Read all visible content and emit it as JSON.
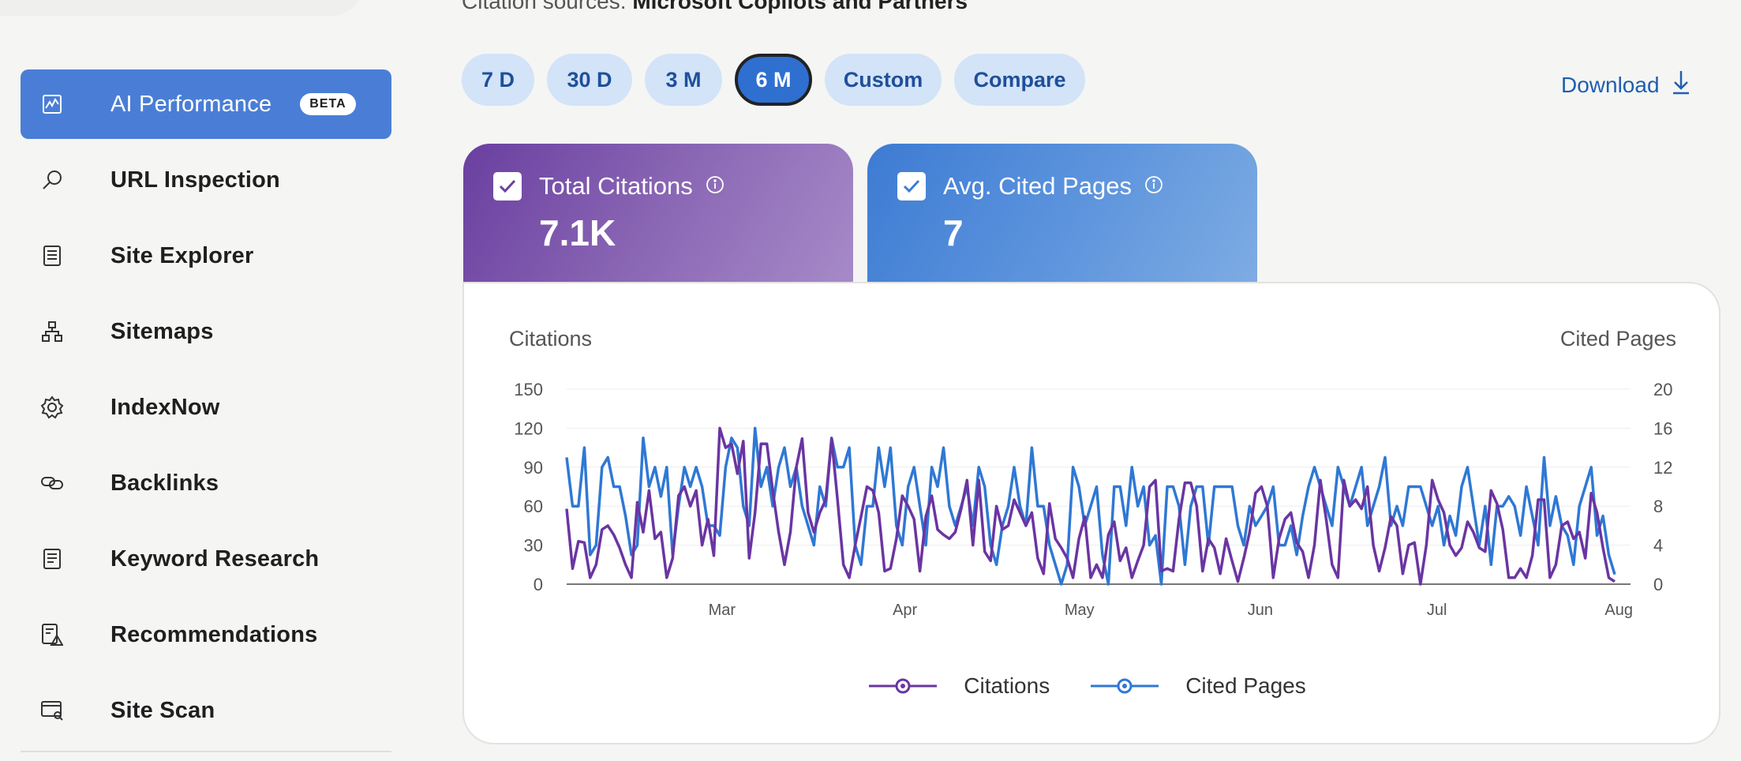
{
  "header": {
    "citation_sources_label": "Citation sources:",
    "citation_sources_value": "Microsoft Copilots and Partners"
  },
  "sidebar": {
    "items": [
      {
        "label": "AI Performance",
        "icon": "chart-icon",
        "active": true,
        "badge": "BETA"
      },
      {
        "label": "URL Inspection",
        "icon": "search-icon"
      },
      {
        "label": "Site Explorer",
        "icon": "checklist-icon"
      },
      {
        "label": "Sitemaps",
        "icon": "sitemap-icon"
      },
      {
        "label": "IndexNow",
        "icon": "gear-icon"
      },
      {
        "label": "Backlinks",
        "icon": "link-icon"
      },
      {
        "label": "Keyword Research",
        "icon": "document-icon"
      },
      {
        "label": "Recommendations",
        "icon": "alert-document-icon"
      },
      {
        "label": "Site Scan",
        "icon": "scan-icon"
      }
    ]
  },
  "range": {
    "buttons": [
      "7 D",
      "30 D",
      "3 M",
      "6 M",
      "Custom",
      "Compare"
    ],
    "selected": "6 M"
  },
  "download": {
    "label": "Download",
    "icon": "download-icon"
  },
  "cards": {
    "citations": {
      "title": "Total Citations",
      "value": "7.1K",
      "checked": true,
      "icon": "info-icon"
    },
    "pages": {
      "title": "Avg. Cited Pages",
      "value": "7",
      "checked": true,
      "icon": "info-icon"
    }
  },
  "colors": {
    "accent": "#4a7ed6",
    "citations_series": "#6a35a2",
    "pages_series": "#2f78d4"
  },
  "chart_data": {
    "type": "line",
    "ylabel_left": "Citations",
    "ylabel_right": "Cited Pages",
    "y_left_ticks": [
      "150",
      "120",
      "90",
      "60",
      "30",
      "0"
    ],
    "y_right_ticks": [
      "20",
      "16",
      "12",
      "8",
      "4",
      "0"
    ],
    "ylim_left": [
      0,
      150
    ],
    "ylim_right": [
      0,
      20
    ],
    "x_ticks": [
      "Mar",
      "Apr",
      "May",
      "Jun",
      "Jul",
      "Aug"
    ],
    "grid": true,
    "legend_position": "bottom",
    "series": [
      {
        "name": "Citations",
        "axis": "left",
        "values": [
          58,
          12,
          33,
          32,
          5,
          15,
          42,
          45,
          38,
          28,
          15,
          5,
          63,
          40,
          72,
          35,
          40,
          5,
          20,
          68,
          75,
          60,
          72,
          30,
          50,
          22,
          120,
          105,
          108,
          85,
          110,
          20,
          55,
          108,
          108,
          72,
          40,
          15,
          40,
          90,
          112,
          55,
          40,
          55,
          65,
          112,
          65,
          15,
          5,
          30,
          52,
          75,
          72,
          55,
          10,
          12,
          35,
          68,
          60,
          50,
          10,
          52,
          68,
          42,
          38,
          35,
          40,
          58,
          80,
          30,
          80,
          25,
          18,
          60,
          42,
          45,
          65,
          55,
          45,
          55,
          20,
          8,
          62,
          35,
          28,
          20,
          5,
          35,
          52,
          5,
          15,
          5,
          38,
          48,
          18,
          28,
          5,
          18,
          30,
          75,
          80,
          10,
          12,
          10,
          50,
          78,
          78,
          60,
          10,
          35,
          28,
          8,
          35,
          18,
          2,
          20,
          40,
          70,
          75,
          60,
          5,
          35,
          50,
          55,
          32,
          25,
          5,
          30,
          80,
          50,
          15,
          5,
          80,
          60,
          65,
          58,
          75,
          30,
          10,
          28,
          52,
          45,
          8,
          30,
          32,
          0,
          30,
          80,
          65,
          55,
          30,
          22,
          28,
          48,
          40,
          28,
          25,
          72,
          62,
          42,
          5,
          5,
          12,
          5,
          22,
          65,
          65,
          5,
          15,
          45,
          48,
          35,
          40,
          20,
          70,
          55,
          28,
          5,
          2
        ]
      },
      {
        "name": "Cited Pages",
        "axis": "right",
        "values": [
          13,
          8,
          8,
          14,
          3,
          4,
          12,
          13,
          10,
          10,
          7,
          3,
          4,
          15,
          10,
          12,
          9,
          12,
          3,
          8,
          12,
          10,
          12,
          10,
          6,
          6,
          5,
          12,
          15,
          14,
          8,
          6,
          16,
          10,
          12,
          8,
          12,
          14,
          10,
          12,
          8,
          6,
          4,
          10,
          8,
          15,
          12,
          12,
          14,
          4,
          2,
          8,
          8,
          14,
          10,
          14,
          6,
          4,
          10,
          12,
          8,
          4,
          12,
          10,
          14,
          8,
          6,
          8,
          10,
          6,
          12,
          10,
          4,
          2,
          6,
          8,
          12,
          8,
          6,
          14,
          8,
          8,
          4,
          2,
          0,
          2,
          12,
          10,
          6,
          8,
          10,
          3,
          0,
          10,
          10,
          6,
          12,
          8,
          10,
          4,
          5,
          0,
          10,
          10,
          8,
          2,
          8,
          10,
          10,
          4,
          10,
          10,
          10,
          10,
          6,
          4,
          8,
          6,
          7,
          8,
          10,
          4,
          4,
          6,
          3,
          7,
          10,
          12,
          10,
          8,
          6,
          12,
          10,
          8,
          10,
          12,
          6,
          8,
          10,
          13,
          6,
          8,
          6,
          10,
          10,
          10,
          8,
          6,
          8,
          4,
          7,
          5,
          10,
          12,
          8,
          4,
          8,
          2,
          8,
          8,
          9,
          8,
          5,
          10,
          7,
          4,
          13,
          6,
          9,
          6,
          5,
          2,
          8,
          10,
          12,
          5,
          7,
          3,
          1
        ]
      }
    ]
  },
  "legend": {
    "citations": "Citations",
    "pages": "Cited Pages"
  }
}
